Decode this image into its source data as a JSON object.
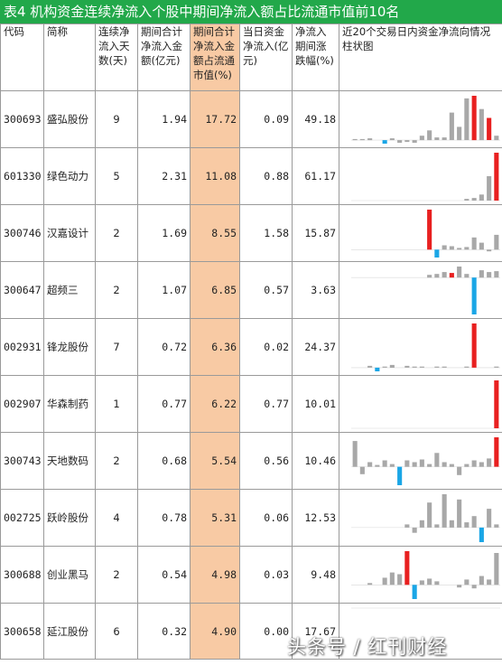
{
  "title": "表4  机构资金连续净流入个股中期间净流入额占比流通市值前10名",
  "columns": [
    "代码",
    "简称",
    "连续净流入天数(天)",
    "期间合计净流入金额(亿元)",
    "期间合计净流入金额占流通市值(%)",
    "当日资金净流入(亿元)",
    "净流入期间涨跌幅(%)",
    "近20个交易日内资金净流向情况柱状图"
  ],
  "colors": {
    "title_bg": "#22a84a",
    "highlight": "#f8caa4",
    "bar_gray": "#a8a8a8",
    "bar_red": "#e82020",
    "bar_blue": "#1aa6e6"
  },
  "rows": [
    {
      "code": "300693",
      "name": "盛弘股份",
      "days": "9",
      "amount": "1.94",
      "ratio": "17.72",
      "today": "0.09",
      "change": "49.18",
      "bars": [
        0,
        0,
        0,
        1,
        -2,
        1,
        -1,
        2,
        1,
        1,
        1,
        1,
        2,
        3,
        3,
        3,
        9,
        10,
        13,
        8,
        14,
        10,
        19,
        17,
        14,
        19,
        19,
        32,
        -13,
        15,
        32,
        40,
        -13,
        22,
        -10,
        12,
        -8,
        16,
        45,
        18,
        -9,
        18,
        -6,
        -14,
        3
      ],
      "spark": [
        1,
        1,
        2,
        0,
        -4,
        2,
        -3,
        -2,
        -3,
        5,
        11,
        3,
        3,
        31,
        15,
        47,
        50,
        35,
        25,
        5
      ],
      "red": [
        16,
        18
      ],
      "blue": [
        4
      ]
    },
    {
      "code": "601330",
      "name": "绿色动力",
      "days": "5",
      "amount": "2.31",
      "ratio": "11.08",
      "today": "0.88",
      "change": "61.17",
      "spark": [
        0,
        0,
        0,
        0,
        0,
        0,
        0,
        0,
        0,
        0,
        0,
        0,
        0,
        0,
        0,
        2,
        3,
        7,
        28,
        55
      ],
      "red": [
        19
      ],
      "blue": []
    },
    {
      "code": "300746",
      "name": "汉嘉设计",
      "days": "2",
      "amount": "1.69",
      "ratio": "8.55",
      "today": "1.58",
      "change": "15.87",
      "spark": [
        0,
        0,
        0,
        0,
        0,
        0,
        0,
        0,
        0,
        0,
        46,
        -9,
        5,
        4,
        2,
        3,
        14,
        8,
        -2,
        17
      ],
      "red": [
        10
      ],
      "blue": [
        11
      ]
    },
    {
      "code": "300647",
      "name": "超频三",
      "days": "2",
      "amount": "1.07",
      "ratio": "6.85",
      "today": "0.57",
      "change": "3.63",
      "spark": [
        0,
        0,
        0,
        0,
        0,
        0,
        0,
        0,
        0,
        0,
        3,
        4,
        6,
        5,
        12,
        4,
        -40,
        8,
        6,
        7
      ],
      "red": [
        13
      ],
      "blue": [
        16
      ]
    },
    {
      "code": "002931",
      "name": "锋龙股份",
      "days": "7",
      "amount": "0.72",
      "ratio": "6.36",
      "today": "0.02",
      "change": "24.37",
      "spark": [
        0,
        0,
        2,
        -4,
        1,
        3,
        0,
        2,
        1,
        1,
        0,
        1,
        1,
        0,
        0,
        1,
        48,
        0,
        0,
        1
      ],
      "red": [
        16
      ],
      "blue": [
        3
      ]
    },
    {
      "code": "002907",
      "name": "华森制药",
      "days": "1",
      "amount": "0.77",
      "ratio": "6.22",
      "today": "0.77",
      "change": "10.01",
      "spark": [
        0,
        0,
        0,
        0,
        0,
        0,
        0,
        0,
        0,
        0,
        0,
        0,
        0,
        0,
        0,
        0,
        0,
        0,
        0,
        52
      ],
      "red": [
        19
      ],
      "blue": []
    },
    {
      "code": "300743",
      "name": "天地数码",
      "days": "2",
      "amount": "0.68",
      "ratio": "5.54",
      "today": "0.56",
      "change": "10.46",
      "spark": [
        28,
        -8,
        5,
        2,
        7,
        3,
        -20,
        7,
        5,
        8,
        3,
        15,
        5,
        3,
        -9,
        3,
        7,
        5,
        9,
        32
      ],
      "red": [
        19
      ],
      "blue": [
        6
      ]
    },
    {
      "code": "002725",
      "name": "跃岭股份",
      "days": "4",
      "amount": "0.78",
      "ratio": "5.31",
      "today": "0.06",
      "change": "12.53",
      "spark": [
        0,
        0,
        0,
        0,
        0,
        0,
        0,
        3,
        -5,
        7,
        24,
        3,
        32,
        7,
        27,
        5,
        11,
        -14,
        18,
        3
      ],
      "red": [],
      "blue": [
        17
      ]
    },
    {
      "code": "300688",
      "name": "创业黑马",
      "days": "2",
      "amount": "0.54",
      "ratio": "4.98",
      "today": "0.03",
      "change": "9.48",
      "spark": [
        0,
        0,
        2,
        0,
        8,
        14,
        12,
        38,
        -16,
        5,
        7,
        4,
        0,
        0,
        -3,
        6,
        -4,
        10,
        6,
        36
      ],
      "red": [
        7
      ],
      "blue": [
        8
      ]
    },
    {
      "code": "300658",
      "name": "延江股份",
      "days": "6",
      "amount": "0.32",
      "ratio": "4.90",
      "today": "0.00",
      "change": "17.67",
      "spark": [
        0,
        0,
        0,
        0,
        0,
        0,
        0,
        0,
        0,
        0,
        0,
        0,
        0,
        0,
        0,
        0,
        0,
        0,
        0,
        0
      ],
      "red": [],
      "blue": []
    }
  ],
  "watermark": "头条号 / 红刊财经"
}
